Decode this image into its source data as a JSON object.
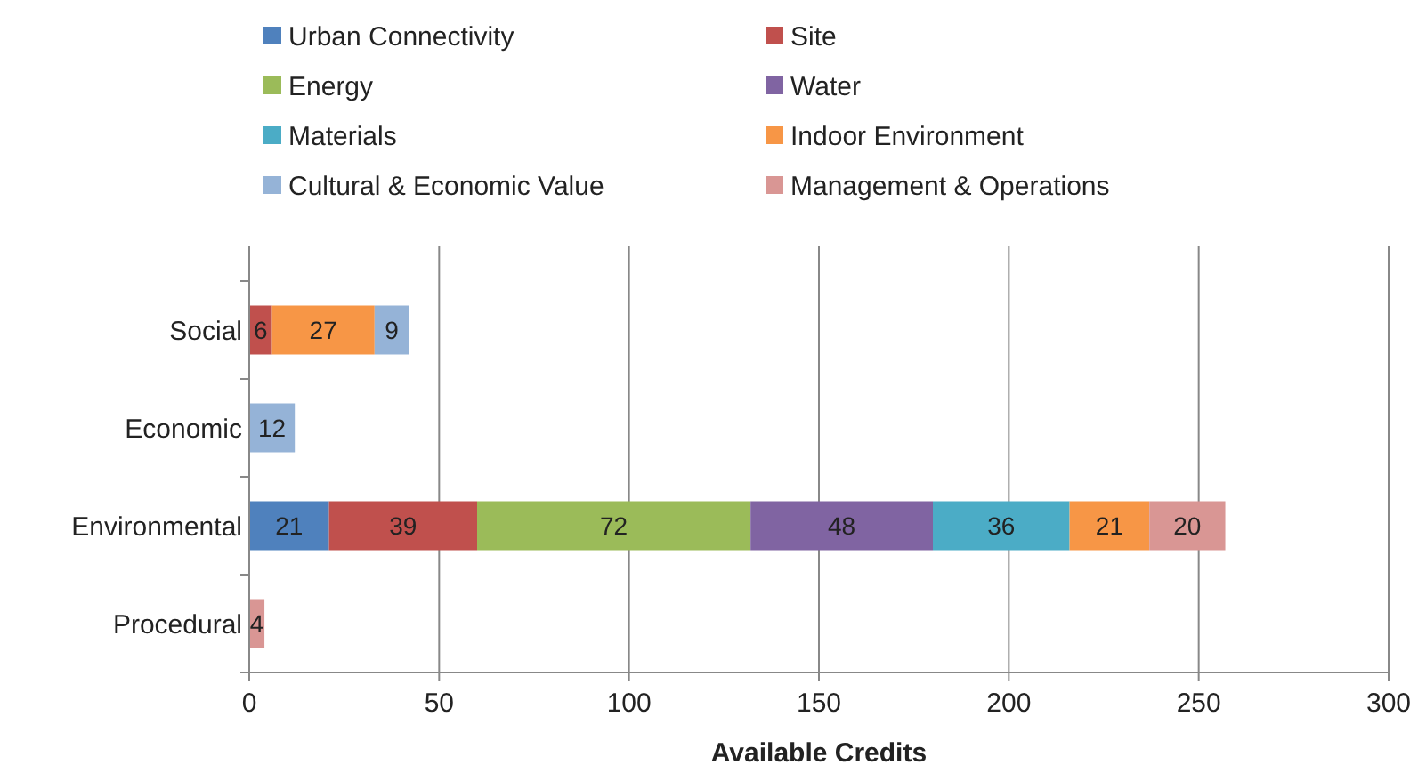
{
  "chart_data": {
    "type": "bar",
    "orientation": "horizontal",
    "stacked": true,
    "categories": [
      "Social",
      "Economic",
      "Environmental",
      "Procedural"
    ],
    "series": [
      {
        "name": "Urban Connectivity",
        "color": "#4f81bd",
        "values": [
          null,
          null,
          21,
          null
        ]
      },
      {
        "name": "Site",
        "color": "#c0504d",
        "values": [
          6,
          null,
          39,
          null
        ]
      },
      {
        "name": "Energy",
        "color": "#9bbb59",
        "values": [
          null,
          null,
          72,
          null
        ]
      },
      {
        "name": "Water",
        "color": "#8064a2",
        "values": [
          null,
          null,
          48,
          null
        ]
      },
      {
        "name": "Materials",
        "color": "#4bacc6",
        "values": [
          null,
          null,
          36,
          null
        ]
      },
      {
        "name": "Indoor Environment",
        "color": "#f79646",
        "values": [
          27,
          null,
          21,
          null
        ]
      },
      {
        "name": "Cultural & Economic Value",
        "color": "#95b3d7",
        "values": [
          9,
          12,
          null,
          null
        ]
      },
      {
        "name": "Management & Operations",
        "color": "#d99694",
        "values": [
          null,
          null,
          20,
          4
        ]
      }
    ],
    "xlabel": "Available Credits",
    "xlim": [
      0,
      300
    ],
    "xticks": [
      0,
      50,
      100,
      150,
      200,
      250,
      300
    ],
    "grid": "x",
    "legend": "top",
    "data_labels": true
  }
}
